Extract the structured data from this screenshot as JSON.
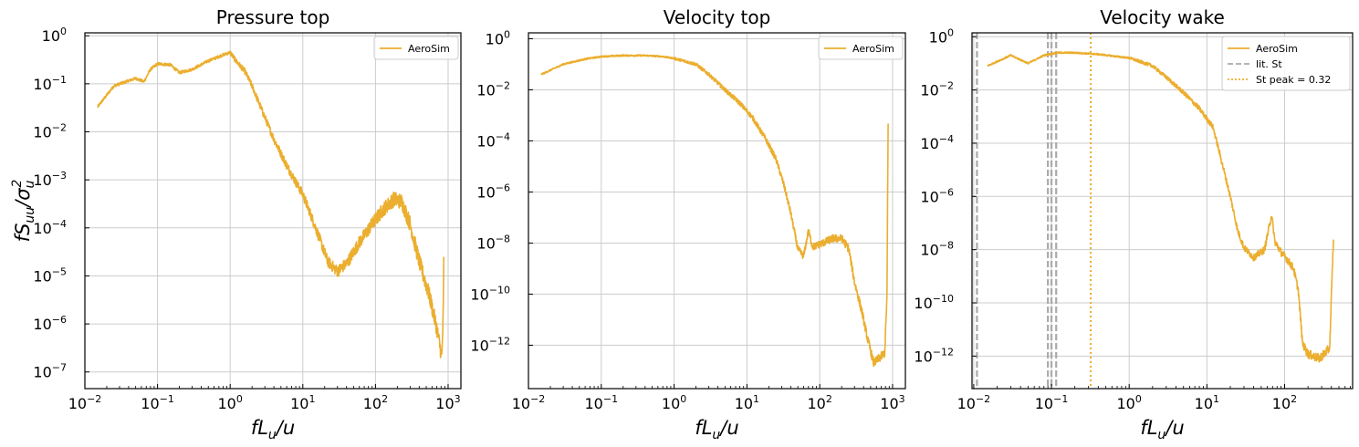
{
  "figure": {
    "ylabel_shared": "fS_uu/σ_u²",
    "xlabel_shared": "fL_u/u"
  },
  "chart_data": [
    {
      "type": "line",
      "title": "Pressure top",
      "xlabel": "fL_u/u",
      "ylabel": "fS_uu/σ_u²",
      "xscale": "log",
      "yscale": "log",
      "xlim": [
        0.01,
        1500
      ],
      "ylim": [
        4.5e-08,
        1.15
      ],
      "grid": true,
      "xticks": [
        0.01,
        0.1,
        1,
        10,
        100,
        1000
      ],
      "xtick_labels": [
        [
          "10",
          "−2"
        ],
        [
          "10",
          "−1"
        ],
        [
          "10",
          "0"
        ],
        [
          "10",
          "1"
        ],
        [
          "10",
          "2"
        ],
        [
          "10",
          "3"
        ]
      ],
      "yticks": [
        1e-07,
        1e-06,
        1e-05,
        0.0001,
        0.001,
        0.01,
        0.1,
        1
      ],
      "ytick_labels": [
        [
          "10",
          "−7"
        ],
        [
          "10",
          "−6"
        ],
        [
          "10",
          "−5"
        ],
        [
          "10",
          "−4"
        ],
        [
          "10",
          "−3"
        ],
        [
          "10",
          "−2"
        ],
        [
          "10",
          "−1"
        ],
        [
          "10",
          "0"
        ]
      ],
      "legend": {
        "position": "top-right",
        "entries": [
          {
            "label": "AeroSim",
            "style": "solid",
            "color": "#EBAE2E"
          }
        ]
      },
      "series": [
        {
          "name": "AeroSim",
          "color": "#EBAE2E",
          "noisy": true,
          "points": [
            [
              0.015,
              0.033
            ],
            [
              0.025,
              0.09
            ],
            [
              0.05,
              0.13
            ],
            [
              0.065,
              0.11
            ],
            [
              0.08,
              0.2
            ],
            [
              0.1,
              0.26
            ],
            [
              0.15,
              0.25
            ],
            [
              0.2,
              0.17
            ],
            [
              0.3,
              0.2
            ],
            [
              0.5,
              0.3
            ],
            [
              0.8,
              0.4
            ],
            [
              1.0,
              0.45
            ],
            [
              1.2,
              0.3
            ],
            [
              1.6,
              0.18
            ],
            [
              2,
              0.09
            ],
            [
              3,
              0.02
            ],
            [
              4,
              0.007
            ],
            [
              6,
              0.002
            ],
            [
              8,
              0.0009
            ],
            [
              10,
              0.0005
            ],
            [
              13,
              0.00018
            ],
            [
              17,
              6e-05
            ],
            [
              22,
              2e-05
            ],
            [
              30,
              1.25e-05
            ],
            [
              40,
              1.8e-05
            ],
            [
              60,
              5e-05
            ],
            [
              90,
              0.00012
            ],
            [
              130,
              0.00025
            ],
            [
              180,
              0.0004
            ],
            [
              230,
              0.00035
            ],
            [
              300,
              0.00012
            ],
            [
              400,
              2e-05
            ],
            [
              550,
              4e-06
            ],
            [
              700,
              8e-07
            ],
            [
              820,
              2e-07
            ],
            [
              860,
              2e-06
            ],
            [
              870,
              2e-05
            ]
          ]
        }
      ]
    },
    {
      "type": "line",
      "title": "Velocity top",
      "xlabel": "fL_u/u",
      "ylabel": "",
      "xscale": "log",
      "yscale": "log",
      "xlim": [
        0.01,
        1500
      ],
      "ylim": [
        2e-14,
        1.7
      ],
      "grid": true,
      "xticks": [
        0.01,
        0.1,
        1,
        10,
        100,
        1000
      ],
      "xtick_labels": [
        [
          "10",
          "−2"
        ],
        [
          "10",
          "−1"
        ],
        [
          "10",
          "0"
        ],
        [
          "10",
          "1"
        ],
        [
          "10",
          "2"
        ],
        [
          "10",
          "3"
        ]
      ],
      "yticks": [
        1e-12,
        1e-10,
        1e-08,
        1e-06,
        0.0001,
        0.01,
        1
      ],
      "ytick_labels": [
        [
          "10",
          "−12"
        ],
        [
          "10",
          "−10"
        ],
        [
          "10",
          "−8"
        ],
        [
          "10",
          "−6"
        ],
        [
          "10",
          "−4"
        ],
        [
          "10",
          "−2"
        ],
        [
          "10",
          "0"
        ]
      ],
      "legend": {
        "position": "top-right",
        "entries": [
          {
            "label": "AeroSim",
            "style": "solid",
            "color": "#EBAE2E"
          }
        ]
      },
      "series": [
        {
          "name": "AeroSim",
          "color": "#EBAE2E",
          "noisy": true,
          "points": [
            [
              0.015,
              0.04
            ],
            [
              0.03,
              0.1
            ],
            [
              0.06,
              0.16
            ],
            [
              0.1,
              0.2
            ],
            [
              0.2,
              0.22
            ],
            [
              0.4,
              0.22
            ],
            [
              0.7,
              0.2
            ],
            [
              1.0,
              0.17
            ],
            [
              2,
              0.1
            ],
            [
              3,
              0.04
            ],
            [
              5,
              0.01
            ],
            [
              8,
              0.003
            ],
            [
              12,
              0.0008
            ],
            [
              18,
              0.00012
            ],
            [
              25,
              2e-05
            ],
            [
              32,
              2e-06
            ],
            [
              40,
              1.5e-07
            ],
            [
              50,
              6e-09
            ],
            [
              60,
              3e-09
            ],
            [
              70,
              3e-08
            ],
            [
              80,
              7e-09
            ],
            [
              110,
              1e-08
            ],
            [
              150,
              1.5e-08
            ],
            [
              200,
              1.5e-08
            ],
            [
              250,
              6e-09
            ],
            [
              300,
              3e-10
            ],
            [
              380,
              2e-11
            ],
            [
              450,
              2e-12
            ],
            [
              550,
              2e-13
            ],
            [
              650,
              3e-13
            ],
            [
              780,
              5e-13
            ],
            [
              840,
              1e-10
            ],
            [
              860,
              1e-05
            ],
            [
              870,
              0.00048
            ]
          ]
        }
      ]
    },
    {
      "type": "line",
      "title": "Velocity wake",
      "xlabel": "fL_u/u",
      "ylabel": "",
      "xscale": "log",
      "yscale": "log",
      "xlim": [
        0.0095,
        750
      ],
      "ylim": [
        6e-14,
        1.4
      ],
      "grid": true,
      "xticks": [
        0.01,
        0.1,
        1,
        10,
        100
      ],
      "xtick_labels": [
        [
          "10",
          "−2"
        ],
        [
          "10",
          "−1"
        ],
        [
          "10",
          "0"
        ],
        [
          "10",
          "1"
        ],
        [
          "10",
          "2"
        ]
      ],
      "yticks": [
        1e-12,
        1e-10,
        1e-08,
        1e-06,
        0.0001,
        0.01,
        1
      ],
      "ytick_labels": [
        [
          "10",
          "−12"
        ],
        [
          "10",
          "−10"
        ],
        [
          "10",
          "−8"
        ],
        [
          "10",
          "−6"
        ],
        [
          "10",
          "−4"
        ],
        [
          "10",
          "−2"
        ],
        [
          "10",
          "0"
        ]
      ],
      "legend": {
        "position": "top-right",
        "entries": [
          {
            "label": "AeroSim",
            "style": "solid",
            "color": "#EBAE2E"
          },
          {
            "label": "lit. St",
            "style": "dashed",
            "color": "#AAAAAA"
          },
          {
            "label": "St peak = 0.32",
            "style": "dotted",
            "color": "#EBAE2E"
          }
        ]
      },
      "vlines": [
        {
          "x": 0.011,
          "style": "dashed",
          "color": "#AAAAAA"
        },
        {
          "x": 0.09,
          "style": "dashed",
          "color": "#AAAAAA"
        },
        {
          "x": 0.1,
          "style": "dashed",
          "color": "#AAAAAA"
        },
        {
          "x": 0.115,
          "style": "dashed",
          "color": "#AAAAAA"
        },
        {
          "x": 0.32,
          "style": "dotted",
          "color": "#EBAE2E"
        }
      ],
      "series": [
        {
          "name": "AeroSim",
          "color": "#EBAE2E",
          "noisy": true,
          "points": [
            [
              0.015,
              0.08
            ],
            [
              0.03,
              0.2
            ],
            [
              0.05,
              0.1
            ],
            [
              0.08,
              0.2
            ],
            [
              0.12,
              0.25
            ],
            [
              0.2,
              0.25
            ],
            [
              0.4,
              0.22
            ],
            [
              0.7,
              0.18
            ],
            [
              1.0,
              0.16
            ],
            [
              2,
              0.08
            ],
            [
              3,
              0.03
            ],
            [
              5,
              0.008
            ],
            [
              8,
              0.002
            ],
            [
              12,
              0.0004
            ],
            [
              15,
              3e-05
            ],
            [
              20,
              1e-06
            ],
            [
              25,
              5e-08
            ],
            [
              30,
              1.2e-08
            ],
            [
              40,
              5e-09
            ],
            [
              55,
              1e-08
            ],
            [
              68,
              2e-07
            ],
            [
              75,
              2e-08
            ],
            [
              90,
              8e-09
            ],
            [
              110,
              4e-09
            ],
            [
              130,
              2e-09
            ],
            [
              150,
              3e-10
            ],
            [
              170,
              3e-12
            ],
            [
              200,
              1.2e-12
            ],
            [
              280,
              8e-13
            ],
            [
              380,
              2e-12
            ],
            [
              420,
              1e-08
            ],
            [
              430,
              3e-08
            ]
          ]
        }
      ]
    }
  ]
}
